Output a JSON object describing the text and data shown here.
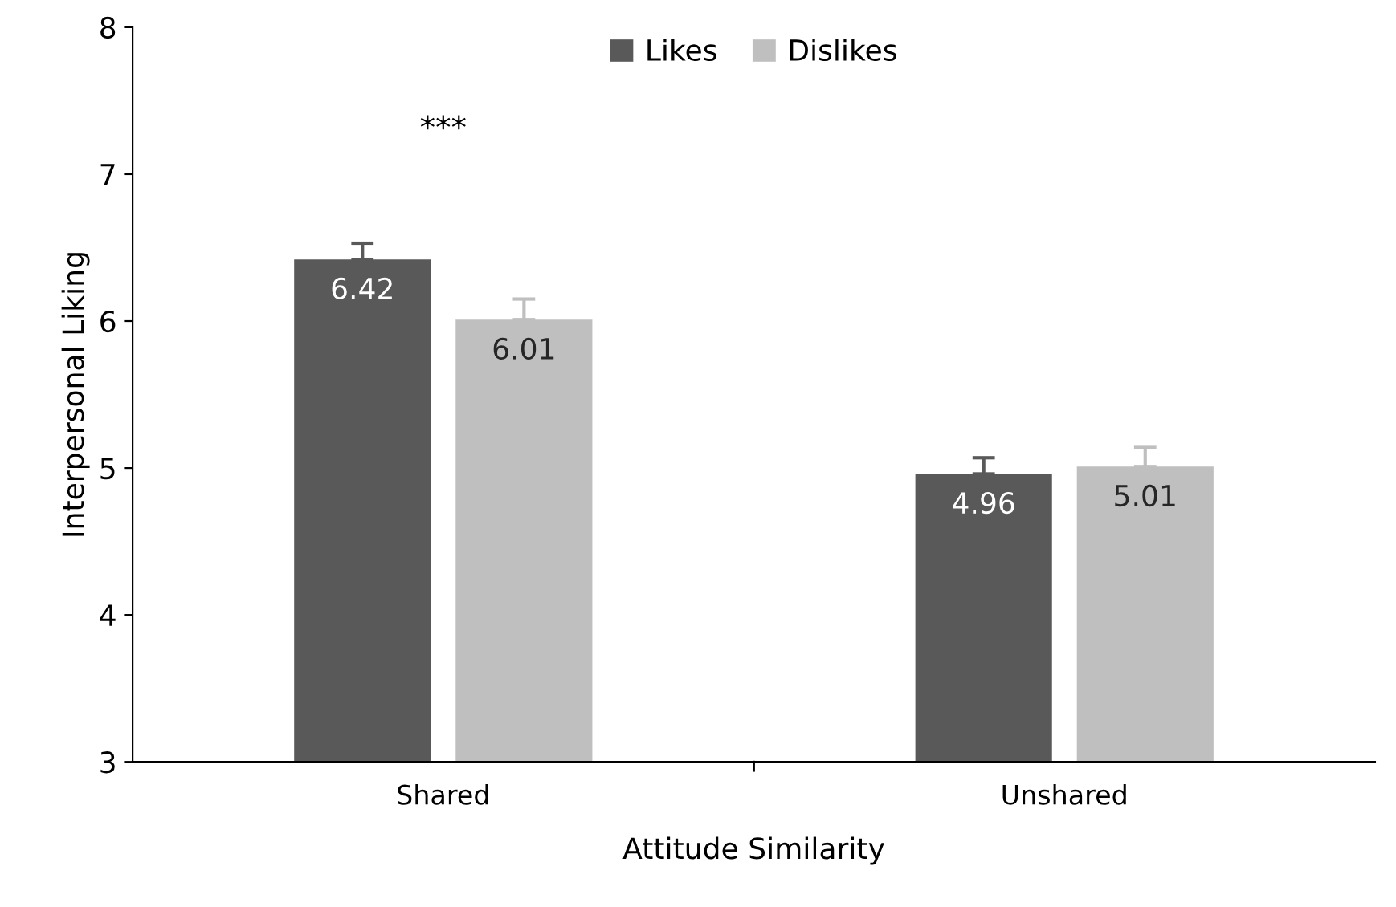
{
  "chart_data": {
    "type": "bar",
    "xlabel": "Attitude Similarity",
    "ylabel": "Interpersonal Liking",
    "categories": [
      "Shared",
      "Unshared"
    ],
    "series": [
      {
        "name": "Likes",
        "color": "#595959",
        "values": [
          6.42,
          4.96
        ],
        "errors": [
          [
            6.42,
            6.53
          ],
          [
            4.96,
            5.07
          ]
        ]
      },
      {
        "name": "Dislikes",
        "color": "#bfbfbf",
        "values": [
          6.01,
          5.01
        ],
        "errors": [
          [
            6.01,
            6.15
          ],
          [
            5.01,
            5.14
          ]
        ]
      }
    ],
    "ylim": [
      3,
      8
    ],
    "yticks": [
      3,
      4,
      5,
      6,
      7,
      8
    ],
    "grid": false,
    "legend": "top",
    "data_labels": true,
    "annotations": [
      "***"
    ]
  }
}
